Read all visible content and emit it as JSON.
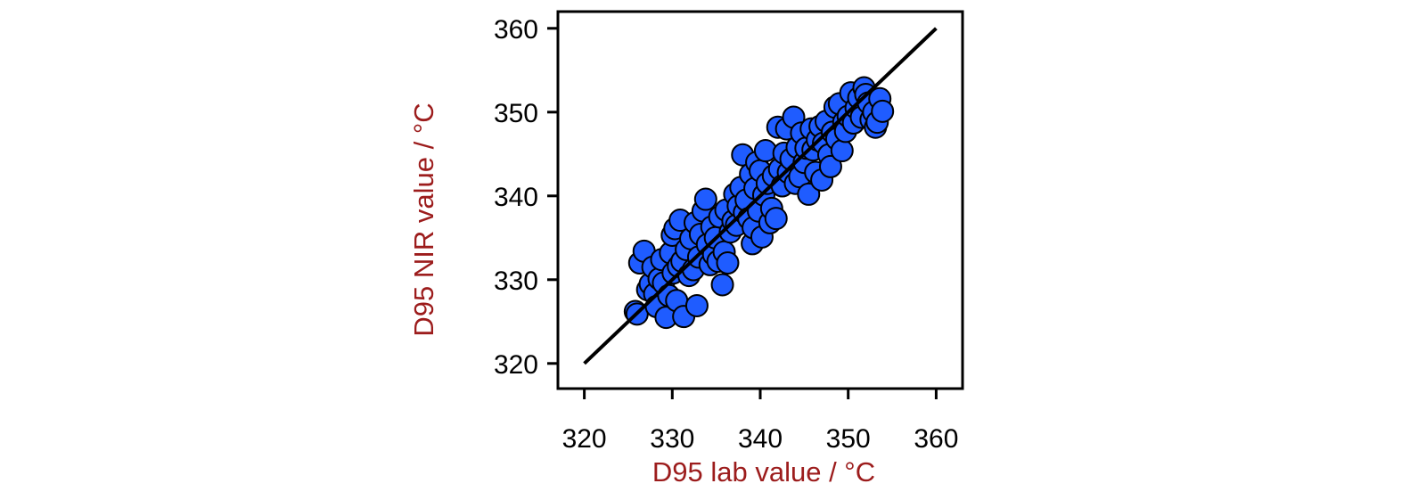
{
  "chart_data": {
    "type": "scatter",
    "title": "",
    "xlabel": "D95 lab value / °C",
    "ylabel": "D95 NIR value / °C",
    "xlim": [
      317,
      363
    ],
    "ylim": [
      317,
      362
    ],
    "xticks": [
      320,
      330,
      340,
      350,
      360
    ],
    "yticks": [
      320,
      330,
      340,
      350,
      360
    ],
    "grid": false,
    "legend": "none",
    "reference_line": {
      "label": "",
      "points": [
        [
          320,
          320
        ],
        [
          360,
          360
        ]
      ]
    },
    "points": [
      [
        325.8,
        326.2
      ],
      [
        326.0,
        325.9
      ],
      [
        326.3,
        332.0
      ],
      [
        326.8,
        333.4
      ],
      [
        327.2,
        328.8
      ],
      [
        327.5,
        329.5
      ],
      [
        327.8,
        331.5
      ],
      [
        328.0,
        328.3
      ],
      [
        328.2,
        326.8
      ],
      [
        328.5,
        330.1
      ],
      [
        328.8,
        332.4
      ],
      [
        329.0,
        329.6
      ],
      [
        329.3,
        325.5
      ],
      [
        329.6,
        328.1
      ],
      [
        329.8,
        333.2
      ],
      [
        330.0,
        335.3
      ],
      [
        330.1,
        330.8
      ],
      [
        330.3,
        336.1
      ],
      [
        330.5,
        327.5
      ],
      [
        330.7,
        331.6
      ],
      [
        330.9,
        337.1
      ],
      [
        331.1,
        332.2
      ],
      [
        331.3,
        325.6
      ],
      [
        331.6,
        333.6
      ],
      [
        331.9,
        330.5
      ],
      [
        332.1,
        334.9
      ],
      [
        332.4,
        331.2
      ],
      [
        332.6,
        336.8
      ],
      [
        332.8,
        326.9
      ],
      [
        333.0,
        332.7
      ],
      [
        333.2,
        335.4
      ],
      [
        333.5,
        338.2
      ],
      [
        333.8,
        339.6
      ],
      [
        334.0,
        334.2
      ],
      [
        334.3,
        331.8
      ],
      [
        334.5,
        336.3
      ],
      [
        334.7,
        333.0
      ],
      [
        334.9,
        335.0
      ],
      [
        335.2,
        332.2
      ],
      [
        335.4,
        337.5
      ],
      [
        335.7,
        329.4
      ],
      [
        335.9,
        333.3
      ],
      [
        336.1,
        338.3
      ],
      [
        336.3,
        332.0
      ],
      [
        336.6,
        335.7
      ],
      [
        336.9,
        337.0
      ],
      [
        337.1,
        340.2
      ],
      [
        337.3,
        336.5
      ],
      [
        337.5,
        338.8
      ],
      [
        337.8,
        341.0
      ],
      [
        338.0,
        344.9
      ],
      [
        338.2,
        338.0
      ],
      [
        338.4,
        339.5
      ],
      [
        338.7,
        337.3
      ],
      [
        338.9,
        342.6
      ],
      [
        339.1,
        334.3
      ],
      [
        339.2,
        336.2
      ],
      [
        339.4,
        340.9
      ],
      [
        339.6,
        344.0
      ],
      [
        339.8,
        338.2
      ],
      [
        340.0,
        343.0
      ],
      [
        340.2,
        335.1
      ],
      [
        340.4,
        340.1
      ],
      [
        340.6,
        345.4
      ],
      [
        340.8,
        341.5
      ],
      [
        341.1,
        336.8
      ],
      [
        341.3,
        338.5
      ],
      [
        341.5,
        342.4
      ],
      [
        341.8,
        337.3
      ],
      [
        342.0,
        348.2
      ],
      [
        342.2,
        343.2
      ],
      [
        342.5,
        341.2
      ],
      [
        342.7,
        345.1
      ],
      [
        343.0,
        348.0
      ],
      [
        343.2,
        342.8
      ],
      [
        343.5,
        344.4
      ],
      [
        343.8,
        349.4
      ],
      [
        344.0,
        341.5
      ],
      [
        344.2,
        345.8
      ],
      [
        344.5,
        342.3
      ],
      [
        344.7,
        347.5
      ],
      [
        345.0,
        344.0
      ],
      [
        345.2,
        345.7
      ],
      [
        345.5,
        340.2
      ],
      [
        345.8,
        348.0
      ],
      [
        346.0,
        345.5
      ],
      [
        346.3,
        342.8
      ],
      [
        346.5,
        346.7
      ],
      [
        346.8,
        348.3
      ],
      [
        347.0,
        341.9
      ],
      [
        347.2,
        346.3
      ],
      [
        347.5,
        348.9
      ],
      [
        347.8,
        344.9
      ],
      [
        348.0,
        343.5
      ],
      [
        348.2,
        347.6
      ],
      [
        348.5,
        350.6
      ],
      [
        348.7,
        346.8
      ],
      [
        349.0,
        351.0
      ],
      [
        349.3,
        345.4
      ],
      [
        349.5,
        348.8
      ],
      [
        349.7,
        347.7
      ],
      [
        350.0,
        349.5
      ],
      [
        350.3,
        352.3
      ],
      [
        350.6,
        348.7
      ],
      [
        350.9,
        350.5
      ],
      [
        351.2,
        351.7
      ],
      [
        351.5,
        349.4
      ],
      [
        351.8,
        352.9
      ],
      [
        352.0,
        352.1
      ],
      [
        352.3,
        351.1
      ],
      [
        352.6,
        349.1
      ],
      [
        352.9,
        350.0
      ],
      [
        353.1,
        348.2
      ],
      [
        353.3,
        348.8
      ],
      [
        353.6,
        351.6
      ],
      [
        353.9,
        350.1
      ]
    ],
    "colors": {
      "point_fill": "#1f5cff",
      "point_stroke": "#000000",
      "line": "#000000",
      "axis": "#000000",
      "label": "#9c1c1c"
    }
  }
}
